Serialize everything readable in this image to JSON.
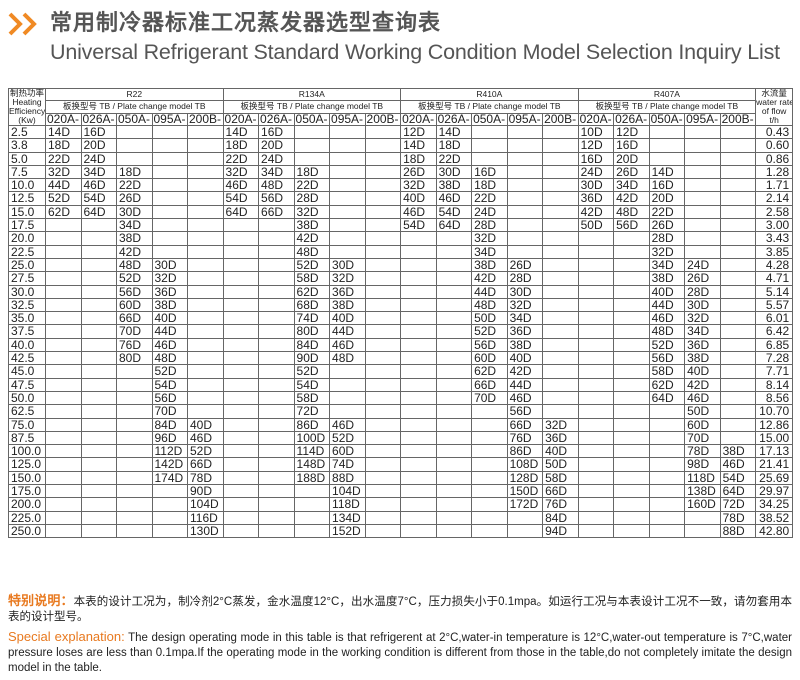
{
  "header": {
    "title_cn": "常用制冷器标准工况蒸发器选型查询表",
    "title_en": "Universal Refrigerant Standard Working Condition Model Selection Inquiry List"
  },
  "table": {
    "first_col": [
      "制热功率",
      "Heating",
      "Efficiency",
      "(Kw)"
    ],
    "refrigerants": [
      "R22",
      "R134A",
      "R410A",
      "R407A"
    ],
    "sub_header": "板换型号 TB / Plate change model TB",
    "last_col": [
      "水流量",
      "water rate",
      "of flow",
      "t/h"
    ],
    "models": [
      "020A-",
      "026A-",
      "050A-",
      "095A-",
      "200B-"
    ],
    "rows": [
      [
        "2.5",
        "14D",
        "16D",
        null,
        null,
        null,
        "14D",
        "16D",
        null,
        null,
        null,
        "12D",
        "14D",
        null,
        null,
        null,
        "10D",
        "12D",
        null,
        null,
        null,
        "0.43"
      ],
      [
        "3.8",
        "18D",
        "20D",
        null,
        null,
        null,
        "18D",
        "20D",
        null,
        null,
        null,
        "14D",
        "18D",
        null,
        null,
        null,
        "12D",
        "16D",
        null,
        null,
        null,
        "0.60"
      ],
      [
        "5.0",
        "22D",
        "24D",
        null,
        null,
        null,
        "22D",
        "24D",
        null,
        null,
        null,
        "18D",
        "22D",
        null,
        null,
        null,
        "16D",
        "20D",
        null,
        null,
        null,
        "0.86"
      ],
      [
        "7.5",
        "32D",
        "34D",
        "18D",
        null,
        null,
        "32D",
        "34D",
        "18D",
        null,
        null,
        "26D",
        "30D",
        "16D",
        null,
        null,
        "24D",
        "26D",
        "14D",
        null,
        null,
        "1.28"
      ],
      [
        "10.0",
        "44D",
        "46D",
        "22D",
        null,
        null,
        "46D",
        "48D",
        "22D",
        null,
        null,
        "32D",
        "38D",
        "18D",
        null,
        null,
        "30D",
        "34D",
        "16D",
        null,
        null,
        "1.71"
      ],
      [
        "12.5",
        "52D",
        "54D",
        "26D",
        null,
        null,
        "54D",
        "56D",
        "28D",
        null,
        null,
        "40D",
        "46D",
        "22D",
        null,
        null,
        "36D",
        "42D",
        "20D",
        null,
        null,
        "2.14"
      ],
      [
        "15.0",
        "62D",
        "64D",
        "30D",
        null,
        null,
        "64D",
        "66D",
        "32D",
        null,
        null,
        "46D",
        "54D",
        "24D",
        null,
        null,
        "42D",
        "48D",
        "22D",
        null,
        null,
        "2.58"
      ],
      [
        "17.5",
        null,
        null,
        "34D",
        null,
        null,
        null,
        null,
        "38D",
        null,
        null,
        "54D",
        "64D",
        "28D",
        null,
        null,
        "50D",
        "56D",
        "26D",
        null,
        null,
        "3.00"
      ],
      [
        "20.0",
        null,
        null,
        "38D",
        null,
        null,
        null,
        null,
        "42D",
        null,
        null,
        null,
        null,
        "32D",
        null,
        null,
        null,
        null,
        "28D",
        null,
        null,
        "3.43"
      ],
      [
        "22.5",
        null,
        null,
        "42D",
        null,
        null,
        null,
        null,
        "48D",
        null,
        null,
        null,
        null,
        "34D",
        null,
        null,
        null,
        null,
        "32D",
        null,
        null,
        "3.85"
      ],
      [
        "25.0",
        null,
        null,
        "48D",
        "30D",
        null,
        null,
        null,
        "52D",
        "30D",
        null,
        null,
        null,
        "38D",
        "26D",
        null,
        null,
        null,
        "34D",
        "24D",
        null,
        "4.28"
      ],
      [
        "27.5",
        null,
        null,
        "52D",
        "32D",
        null,
        null,
        null,
        "58D",
        "32D",
        null,
        null,
        null,
        "42D",
        "28D",
        null,
        null,
        null,
        "38D",
        "26D",
        null,
        "4.71"
      ],
      [
        "30.0",
        null,
        null,
        "56D",
        "36D",
        null,
        null,
        null,
        "62D",
        "36D",
        null,
        null,
        null,
        "44D",
        "30D",
        null,
        null,
        null,
        "40D",
        "28D",
        null,
        "5.14"
      ],
      [
        "32.5",
        null,
        null,
        "60D",
        "38D",
        null,
        null,
        null,
        "68D",
        "38D",
        null,
        null,
        null,
        "48D",
        "32D",
        null,
        null,
        null,
        "44D",
        "30D",
        null,
        "5.57"
      ],
      [
        "35.0",
        null,
        null,
        "66D",
        "40D",
        null,
        null,
        null,
        "74D",
        "40D",
        null,
        null,
        null,
        "50D",
        "34D",
        null,
        null,
        null,
        "46D",
        "32D",
        null,
        "6.01"
      ],
      [
        "37.5",
        null,
        null,
        "70D",
        "44D",
        null,
        null,
        null,
        "80D",
        "44D",
        null,
        null,
        null,
        "52D",
        "36D",
        null,
        null,
        null,
        "48D",
        "34D",
        null,
        "6.42"
      ],
      [
        "40.0",
        null,
        null,
        "76D",
        "46D",
        null,
        null,
        null,
        "84D",
        "46D",
        null,
        null,
        null,
        "56D",
        "38D",
        null,
        null,
        null,
        "52D",
        "36D",
        null,
        "6.85"
      ],
      [
        "42.5",
        null,
        null,
        "80D",
        "48D",
        null,
        null,
        null,
        "90D",
        "48D",
        null,
        null,
        null,
        "60D",
        "40D",
        null,
        null,
        null,
        "56D",
        "38D",
        null,
        "7.28"
      ],
      [
        "45.0",
        null,
        null,
        null,
        "52D",
        null,
        null,
        null,
        "52D",
        null,
        null,
        null,
        null,
        "62D",
        "42D",
        null,
        null,
        null,
        "58D",
        "40D",
        null,
        "7.71"
      ],
      [
        "47.5",
        null,
        null,
        null,
        "54D",
        null,
        null,
        null,
        "54D",
        null,
        null,
        null,
        null,
        "66D",
        "44D",
        null,
        null,
        null,
        "62D",
        "42D",
        null,
        "8.14"
      ],
      [
        "50.0",
        null,
        null,
        null,
        "56D",
        null,
        null,
        null,
        "58D",
        null,
        null,
        null,
        null,
        "70D",
        "46D",
        null,
        null,
        null,
        "64D",
        "46D",
        null,
        "8.56"
      ],
      [
        "62.5",
        null,
        null,
        null,
        "70D",
        null,
        null,
        null,
        "72D",
        null,
        null,
        null,
        null,
        null,
        "56D",
        null,
        null,
        null,
        null,
        "50D",
        null,
        "10.70"
      ],
      [
        "75.0",
        null,
        null,
        null,
        "84D",
        "40D",
        null,
        null,
        "86D",
        "46D",
        null,
        null,
        null,
        null,
        "66D",
        "32D",
        null,
        null,
        null,
        "60D",
        null,
        "12.86"
      ],
      [
        "87.5",
        null,
        null,
        null,
        "96D",
        "46D",
        null,
        null,
        "100D",
        "52D",
        null,
        null,
        null,
        null,
        "76D",
        "36D",
        null,
        null,
        null,
        "70D",
        null,
        "15.00"
      ],
      [
        "100.0",
        null,
        null,
        null,
        "112D",
        "52D",
        null,
        null,
        "114D",
        "60D",
        null,
        null,
        null,
        null,
        "86D",
        "40D",
        null,
        null,
        null,
        "78D",
        "38D",
        "17.13"
      ],
      [
        "125.0",
        null,
        null,
        null,
        "142D",
        "66D",
        null,
        null,
        "148D",
        "74D",
        null,
        null,
        null,
        null,
        "108D",
        "50D",
        null,
        null,
        null,
        "98D",
        "46D",
        "21.41"
      ],
      [
        "150.0",
        null,
        null,
        null,
        "174D",
        "78D",
        null,
        null,
        "188D",
        "88D",
        null,
        null,
        null,
        null,
        "128D",
        "58D",
        null,
        null,
        null,
        "118D",
        "54D",
        "25.69"
      ],
      [
        "175.0",
        null,
        null,
        null,
        null,
        "90D",
        null,
        null,
        null,
        "104D",
        null,
        null,
        null,
        null,
        "150D",
        "66D",
        null,
        null,
        null,
        "138D",
        "64D",
        "29.97"
      ],
      [
        "200.0",
        null,
        null,
        null,
        null,
        "104D",
        null,
        null,
        null,
        "118D",
        null,
        null,
        null,
        null,
        "172D",
        "76D",
        null,
        null,
        null,
        "160D",
        "72D",
        "34.25"
      ],
      [
        "225.0",
        null,
        null,
        null,
        null,
        "116D",
        null,
        null,
        null,
        "134D",
        null,
        null,
        null,
        null,
        null,
        "84D",
        null,
        null,
        null,
        null,
        "78D",
        "38.52"
      ],
      [
        "250.0",
        null,
        null,
        null,
        null,
        "130D",
        null,
        null,
        null,
        "152D",
        null,
        null,
        null,
        null,
        null,
        "94D",
        null,
        null,
        null,
        null,
        "88D",
        "42.80"
      ]
    ]
  },
  "notes": {
    "cn_label": "特别说明：",
    "cn_text": "本表的设计工况为，制冷剂2°C蒸发，金水温度12°C，出水温度7°C，压力损失小于0.1mpa。如运行工况与本表设计工况不一致，请勿套用本表的设计型号。",
    "en_label": "Special explanation:",
    "en_text": "The design operating mode in this table is that refrigerent at 2°C,water-in temperature is 12°C,water-out temperature is 7°C,water pressure loses are less than 0.1mpa.If the operating mode in the working condition is different from those in the table,do not completely imitate the design model in the table."
  }
}
